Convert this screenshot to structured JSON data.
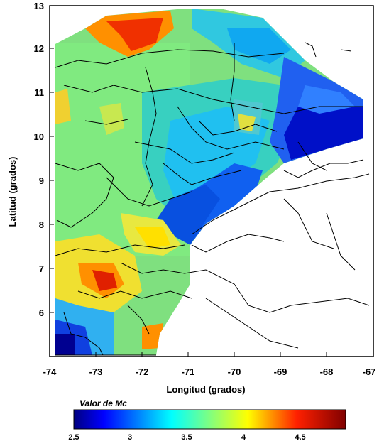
{
  "map": {
    "x_axis": {
      "label": "Longitud (grados)",
      "ticks": [
        -74,
        -73,
        -72,
        -71,
        -70,
        -69,
        -68,
        -67
      ],
      "tick_labels": [
        "-74",
        "-73",
        "-72",
        "-71",
        "-70",
        "-69",
        "-68",
        "-67"
      ]
    },
    "y_axis": {
      "label": "Latitud (grados)",
      "ticks": [
        6,
        7,
        8,
        9,
        10,
        11,
        12,
        13
      ],
      "tick_labels": [
        "6",
        "7",
        "8",
        "9",
        "10",
        "11",
        "12",
        "13"
      ]
    },
    "xlim": [
      -74,
      -67
    ],
    "ylim": [
      5,
      13
    ]
  },
  "colorbar": {
    "title": "Valor de Mc",
    "range": [
      2.5,
      4.9
    ],
    "ticks": [
      2.5,
      3,
      3.5,
      4,
      4.5
    ],
    "tick_labels": [
      "2.5",
      "3",
      "3.5",
      "4",
      "4.5"
    ],
    "colors": [
      "#000080",
      "#0000ff",
      "#0080ff",
      "#00ffff",
      "#80ff80",
      "#ffff00",
      "#ff8000",
      "#ff0000",
      "#800000"
    ]
  },
  "legend_fill": {
    "water": "#ffffff",
    "boundary": "#000000"
  }
}
